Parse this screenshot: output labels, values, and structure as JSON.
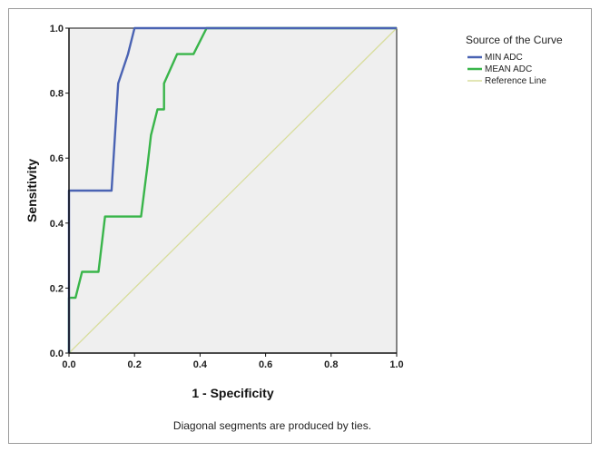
{
  "chart_data": {
    "type": "line",
    "xlabel": "1 - Specificity",
    "ylabel": "Sensitivity",
    "xlim": [
      0.0,
      1.0
    ],
    "ylim": [
      0.0,
      1.0
    ],
    "x_ticks": [
      "0.0",
      "0.2",
      "0.4",
      "0.6",
      "0.8",
      "1.0"
    ],
    "y_ticks": [
      "0.0",
      "0.2",
      "0.4",
      "0.6",
      "0.8",
      "1.0"
    ],
    "grid": false,
    "legend": {
      "title": "Source of the Curve",
      "placement": "top-right"
    },
    "series": [
      {
        "name": "MIN ADC",
        "color": "#4a63b3",
        "points": [
          [
            0.0,
            0.0
          ],
          [
            0.0,
            0.5
          ],
          [
            0.13,
            0.5
          ],
          [
            0.15,
            0.83
          ],
          [
            0.18,
            0.92
          ],
          [
            0.2,
            1.0
          ],
          [
            1.0,
            1.0
          ]
        ]
      },
      {
        "name": "MEAN ADC",
        "color": "#39b54a",
        "points": [
          [
            0.0,
            0.0
          ],
          [
            0.0,
            0.17
          ],
          [
            0.02,
            0.17
          ],
          [
            0.04,
            0.25
          ],
          [
            0.09,
            0.25
          ],
          [
            0.11,
            0.42
          ],
          [
            0.22,
            0.42
          ],
          [
            0.24,
            0.58
          ],
          [
            0.25,
            0.67
          ],
          [
            0.27,
            0.75
          ],
          [
            0.29,
            0.75
          ],
          [
            0.29,
            0.83
          ],
          [
            0.31,
            0.875
          ],
          [
            0.33,
            0.92
          ],
          [
            0.38,
            0.92
          ],
          [
            0.42,
            1.0
          ],
          [
            1.0,
            1.0
          ]
        ]
      },
      {
        "name": "Reference Line",
        "color": "#d8dd9c",
        "points": [
          [
            0.0,
            0.0
          ],
          [
            1.0,
            1.0
          ]
        ]
      }
    ],
    "footnote": "Diagonal segments are produced by ties."
  }
}
